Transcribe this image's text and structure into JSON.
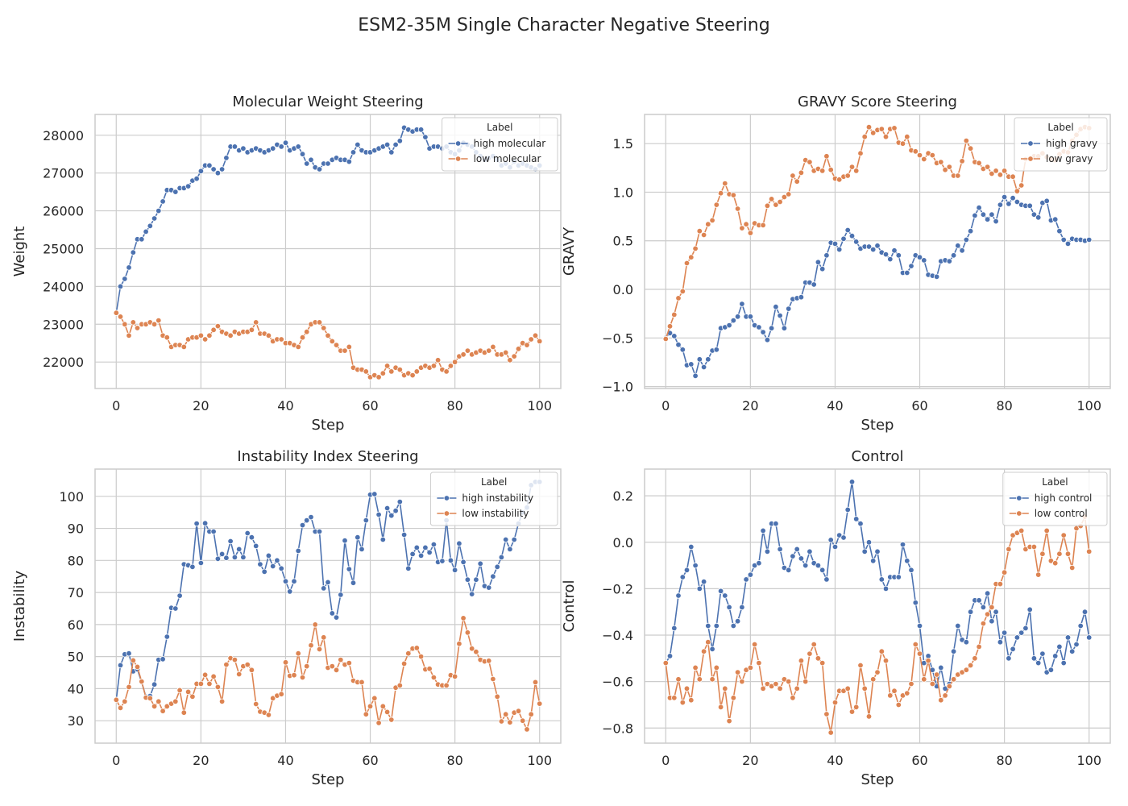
{
  "figure": {
    "title": "ESM2-35M Single Character Negative Steering"
  },
  "colors": {
    "blue": "#4c72b0",
    "orange": "#dd8452",
    "grid": "#cccccc",
    "frame": "#cccccc"
  },
  "chart_data": [
    {
      "type": "line",
      "title": "Molecular Weight Steering",
      "xlabel": "Step",
      "ylabel": "Weight",
      "xlim": [
        -5,
        105
      ],
      "ylim": [
        21300,
        28550
      ],
      "xticks": [
        0,
        20,
        40,
        60,
        80,
        100
      ],
      "yticks": [
        22000,
        23000,
        24000,
        25000,
        26000,
        27000,
        28000
      ],
      "grid": true,
      "legend": {
        "title": "Label",
        "placement": "top-right"
      },
      "series": [
        {
          "name": "high molecular",
          "color": "#4c72b0",
          "x_start": 0,
          "x_step": 1,
          "values": [
            23300,
            24000,
            24200,
            24500,
            24900,
            25250,
            25250,
            25450,
            25600,
            25800,
            26000,
            26250,
            26550,
            26550,
            26500,
            26600,
            26600,
            26650,
            26800,
            26850,
            27050,
            27200,
            27200,
            27100,
            27000,
            27100,
            27400,
            27700,
            27700,
            27600,
            27650,
            27550,
            27600,
            27650,
            27600,
            27550,
            27600,
            27650,
            27750,
            27700,
            27800,
            27600,
            27650,
            27700,
            27500,
            27250,
            27350,
            27150,
            27100,
            27250,
            27250,
            27350,
            27400,
            27350,
            27350,
            27300,
            27550,
            27750,
            27600,
            27550,
            27550,
            27600,
            27650,
            27700,
            27750,
            27550,
            27750,
            27850,
            28200,
            28150,
            28100,
            28150,
            28150,
            27950,
            27650,
            27700,
            27700,
            27650,
            27700,
            27550,
            27500,
            27600,
            27800,
            27750,
            27700,
            27550,
            27450,
            27350,
            27400,
            27450,
            27350,
            27200,
            27250,
            27150,
            27300,
            27200,
            27250,
            27200,
            27150,
            27100,
            27200
          ]
        },
        {
          "name": "low molecular",
          "color": "#dd8452",
          "x_start": 0,
          "x_step": 1,
          "values": [
            23300,
            23200,
            23000,
            22700,
            23050,
            22900,
            23000,
            23000,
            23050,
            23000,
            23100,
            22700,
            22650,
            22400,
            22450,
            22450,
            22400,
            22600,
            22650,
            22650,
            22700,
            22600,
            22700,
            22850,
            22950,
            22800,
            22750,
            22700,
            22800,
            22750,
            22800,
            22800,
            22850,
            23050,
            22750,
            22750,
            22700,
            22550,
            22600,
            22600,
            22500,
            22500,
            22450,
            22400,
            22650,
            22800,
            23000,
            23050,
            23050,
            22900,
            22700,
            22550,
            22450,
            22300,
            22300,
            22400,
            21850,
            21800,
            21800,
            21750,
            21600,
            21650,
            21600,
            21700,
            21900,
            21750,
            21850,
            21800,
            21650,
            21700,
            21650,
            21750,
            21850,
            21900,
            21850,
            21900,
            22050,
            21800,
            21750,
            21900,
            22000,
            22150,
            22200,
            22300,
            22200,
            22250,
            22300,
            22250,
            22300,
            22400,
            22200,
            22200,
            22250,
            22050,
            22150,
            22350,
            22500,
            22450,
            22600,
            22700,
            22550
          ]
        }
      ]
    },
    {
      "type": "line",
      "title": "GRAVY Score Steering",
      "xlabel": "Step",
      "ylabel": "GRAVY",
      "xlim": [
        -5,
        105
      ],
      "ylim": [
        -1.02,
        1.8
      ],
      "xticks": [
        0,
        20,
        40,
        60,
        80,
        100
      ],
      "yticks": [
        -1.0,
        -0.5,
        0.0,
        0.5,
        1.0,
        1.5
      ],
      "grid": true,
      "legend": {
        "title": "Label",
        "placement": "top-right"
      },
      "series": [
        {
          "name": "high gravy",
          "color": "#4c72b0",
          "x_start": 0,
          "x_step": 1,
          "values": [
            -0.5,
            -0.45,
            -0.48,
            -0.57,
            -0.62,
            -0.78,
            -0.77,
            -0.89,
            -0.72,
            -0.8,
            -0.72,
            -0.63,
            -0.62,
            -0.4,
            -0.39,
            -0.37,
            -0.32,
            -0.28,
            -0.15,
            -0.28,
            -0.28,
            -0.37,
            -0.39,
            -0.44,
            -0.52,
            -0.4,
            -0.18,
            -0.27,
            -0.4,
            -0.2,
            -0.1,
            -0.09,
            -0.08,
            0.07,
            0.07,
            0.05,
            0.28,
            0.21,
            0.35,
            0.48,
            0.47,
            0.41,
            0.52,
            0.61,
            0.55,
            0.49,
            0.42,
            0.44,
            0.44,
            0.41,
            0.45,
            0.38,
            0.36,
            0.31,
            0.4,
            0.35,
            0.17,
            0.17,
            0.24,
            0.35,
            0.33,
            0.3,
            0.15,
            0.14,
            0.13,
            0.29,
            0.3,
            0.29,
            0.35,
            0.45,
            0.4,
            0.51,
            0.6,
            0.76,
            0.84,
            0.77,
            0.72,
            0.77,
            0.7,
            0.87,
            0.95,
            0.88,
            0.94,
            0.9,
            0.87,
            0.86,
            0.86,
            0.77,
            0.74,
            0.89,
            0.91,
            0.71,
            0.72,
            0.6,
            0.51,
            0.47,
            0.52,
            0.51,
            0.51,
            0.5,
            0.51
          ]
        },
        {
          "name": "low gravy",
          "color": "#dd8452",
          "x_start": 0,
          "x_step": 1,
          "values": [
            -0.51,
            -0.38,
            -0.26,
            -0.09,
            -0.02,
            0.27,
            0.33,
            0.42,
            0.6,
            0.56,
            0.67,
            0.71,
            0.87,
            0.99,
            1.09,
            0.98,
            0.97,
            0.83,
            0.63,
            0.67,
            0.58,
            0.68,
            0.66,
            0.66,
            0.86,
            0.93,
            0.87,
            0.9,
            0.95,
            0.98,
            1.17,
            1.11,
            1.2,
            1.33,
            1.31,
            1.22,
            1.24,
            1.22,
            1.37,
            1.23,
            1.14,
            1.13,
            1.16,
            1.17,
            1.26,
            1.22,
            1.4,
            1.57,
            1.67,
            1.61,
            1.64,
            1.65,
            1.57,
            1.65,
            1.66,
            1.51,
            1.5,
            1.57,
            1.43,
            1.42,
            1.38,
            1.34,
            1.4,
            1.38,
            1.3,
            1.31,
            1.23,
            1.26,
            1.17,
            1.17,
            1.32,
            1.53,
            1.45,
            1.31,
            1.3,
            1.24,
            1.26,
            1.19,
            1.22,
            1.18,
            1.22,
            1.16,
            1.16,
            1.01,
            1.07,
            1.34,
            1.35,
            1.37,
            1.37,
            1.4,
            1.36,
            1.34,
            1.33,
            1.39,
            1.42,
            1.41,
            1.53,
            1.59,
            1.65,
            1.67,
            1.66
          ]
        }
      ]
    },
    {
      "type": "line",
      "title": "Instability Index Steering",
      "xlabel": "Step",
      "ylabel": "Instability",
      "xlim": [
        -5,
        105
      ],
      "ylim": [
        23,
        108.5
      ],
      "xticks": [
        0,
        20,
        40,
        60,
        80,
        100
      ],
      "yticks": [
        30,
        40,
        50,
        60,
        70,
        80,
        90,
        100
      ],
      "grid": true,
      "legend": {
        "title": "Label",
        "placement": "top-right"
      },
      "series": [
        {
          "name": "high instability",
          "color": "#4c72b0",
          "x_start": 0,
          "x_step": 1,
          "values": [
            36.5,
            47.3,
            50.7,
            51.0,
            45.4,
            46.0,
            42.0,
            37.5,
            37.7,
            41.3,
            49.0,
            49.2,
            56.2,
            65.2,
            65.0,
            69.0,
            78.8,
            78.5,
            78.0,
            91.5,
            79.2,
            91.6,
            89.0,
            89.0,
            80.5,
            82.0,
            80.8,
            86.0,
            81.0,
            83.5,
            81.0,
            88.5,
            87.2,
            84.5,
            78.8,
            76.5,
            81.5,
            78.2,
            80.0,
            77.5,
            73.5,
            70.3,
            73.5,
            83.0,
            91.0,
            92.5,
            93.5,
            89.0,
            89.0,
            71.3,
            73.2,
            63.5,
            62.2,
            69.3,
            86.2,
            77.3,
            73.0,
            87.2,
            83.5,
            92.5,
            100.5,
            100.7,
            94.3,
            86.5,
            96.3,
            94.0,
            95.5,
            98.3,
            88.0,
            77.5,
            82.0,
            84.0,
            81.5,
            84.0,
            82.5,
            85.0,
            79.5,
            79.8,
            92.5,
            80.0,
            77.0,
            85.3,
            79.5,
            74.0,
            69.5,
            74.0,
            79.0,
            72.0,
            71.5,
            75.0,
            78.0,
            81.0,
            86.5,
            83.5,
            86.5,
            91.5,
            95.0,
            96.5,
            103.5,
            104.5,
            104.5
          ]
        },
        {
          "name": "low instability",
          "color": "#dd8452",
          "x_start": 0,
          "x_step": 1,
          "values": [
            36.5,
            34.0,
            36.0,
            40.5,
            48.8,
            46.8,
            42.2,
            37.2,
            37.0,
            34.5,
            36.0,
            33.0,
            34.5,
            35.3,
            36.0,
            39.5,
            32.5,
            39.0,
            37.5,
            41.5,
            41.5,
            44.3,
            41.5,
            43.8,
            40.5,
            36.0,
            47.5,
            49.5,
            49.0,
            44.5,
            47.0,
            47.5,
            45.8,
            35.2,
            32.8,
            32.5,
            31.8,
            37.0,
            37.8,
            38.3,
            48.2,
            44.0,
            44.2,
            51.0,
            43.5,
            47.0,
            53.5,
            60.0,
            52.3,
            56.0,
            46.5,
            47.0,
            45.8,
            49.0,
            47.5,
            48.0,
            42.5,
            42.0,
            42.0,
            32.0,
            34.5,
            37.0,
            29.3,
            34.5,
            32.7,
            30.3,
            40.3,
            41.0,
            47.8,
            51.0,
            52.5,
            52.7,
            50.0,
            46.0,
            46.2,
            43.5,
            41.3,
            41.0,
            41.0,
            44.2,
            43.8,
            54.0,
            62.0,
            57.5,
            52.5,
            51.5,
            49.0,
            48.5,
            48.7,
            43.0,
            37.5,
            29.8,
            32.0,
            29.5,
            32.5,
            33.0,
            30.0,
            27.3,
            32.0,
            42.0,
            35.3
          ]
        }
      ]
    },
    {
      "type": "line",
      "title": "Control",
      "xlabel": "Step",
      "ylabel": "Control",
      "xlim": [
        -5,
        105
      ],
      "ylim": [
        -0.865,
        0.315
      ],
      "xticks": [
        0,
        20,
        40,
        60,
        80,
        100
      ],
      "yticks": [
        -0.8,
        -0.6,
        -0.4,
        -0.2,
        0.0,
        0.2
      ],
      "grid": true,
      "legend": {
        "title": "Label",
        "placement": "top-right"
      },
      "series": [
        {
          "name": "high control",
          "color": "#4c72b0",
          "x_start": 0,
          "x_step": 1,
          "values": [
            -0.52,
            -0.49,
            -0.37,
            -0.23,
            -0.15,
            -0.12,
            -0.02,
            -0.1,
            -0.2,
            -0.17,
            -0.36,
            -0.46,
            -0.36,
            -0.21,
            -0.23,
            -0.28,
            -0.36,
            -0.34,
            -0.28,
            -0.16,
            -0.14,
            -0.1,
            -0.09,
            0.05,
            -0.04,
            0.08,
            0.08,
            -0.03,
            -0.11,
            -0.12,
            -0.06,
            -0.03,
            -0.07,
            -0.1,
            -0.04,
            -0.09,
            -0.1,
            -0.12,
            -0.16,
            0.01,
            -0.02,
            0.03,
            0.02,
            0.14,
            0.26,
            0.1,
            0.08,
            -0.04,
            0.0,
            -0.08,
            -0.04,
            -0.16,
            -0.2,
            -0.15,
            -0.15,
            -0.15,
            -0.01,
            -0.08,
            -0.12,
            -0.26,
            -0.36,
            -0.52,
            -0.49,
            -0.55,
            -0.62,
            -0.54,
            -0.63,
            -0.61,
            -0.47,
            -0.36,
            -0.42,
            -0.43,
            -0.3,
            -0.25,
            -0.25,
            -0.28,
            -0.22,
            -0.34,
            -0.3,
            -0.43,
            -0.39,
            -0.5,
            -0.46,
            -0.41,
            -0.39,
            -0.37,
            -0.29,
            -0.5,
            -0.52,
            -0.48,
            -0.56,
            -0.55,
            -0.49,
            -0.45,
            -0.52,
            -0.41,
            -0.47,
            -0.44,
            -0.36,
            -0.3,
            -0.41
          ]
        },
        {
          "name": "low control",
          "color": "#dd8452",
          "x_start": 0,
          "x_step": 1,
          "values": [
            -0.52,
            -0.67,
            -0.67,
            -0.59,
            -0.69,
            -0.63,
            -0.68,
            -0.54,
            -0.59,
            -0.47,
            -0.43,
            -0.59,
            -0.54,
            -0.71,
            -0.63,
            -0.77,
            -0.67,
            -0.56,
            -0.6,
            -0.55,
            -0.54,
            -0.44,
            -0.52,
            -0.63,
            -0.61,
            -0.62,
            -0.61,
            -0.63,
            -0.59,
            -0.6,
            -0.67,
            -0.63,
            -0.51,
            -0.6,
            -0.48,
            -0.44,
            -0.5,
            -0.52,
            -0.74,
            -0.82,
            -0.69,
            -0.64,
            -0.64,
            -0.63,
            -0.73,
            -0.71,
            -0.53,
            -0.63,
            -0.75,
            -0.59,
            -0.56,
            -0.47,
            -0.51,
            -0.66,
            -0.64,
            -0.7,
            -0.66,
            -0.65,
            -0.61,
            -0.44,
            -0.48,
            -0.59,
            -0.51,
            -0.61,
            -0.57,
            -0.68,
            -0.66,
            -0.62,
            -0.59,
            -0.57,
            -0.56,
            -0.55,
            -0.53,
            -0.5,
            -0.45,
            -0.35,
            -0.31,
            -0.28,
            -0.18,
            -0.18,
            -0.13,
            -0.03,
            0.03,
            0.04,
            0.05,
            -0.03,
            -0.02,
            -0.02,
            -0.14,
            -0.05,
            0.05,
            -0.08,
            -0.09,
            -0.05,
            0.03,
            -0.05,
            -0.11,
            0.06,
            0.07,
            0.11,
            -0.04
          ]
        }
      ]
    }
  ]
}
